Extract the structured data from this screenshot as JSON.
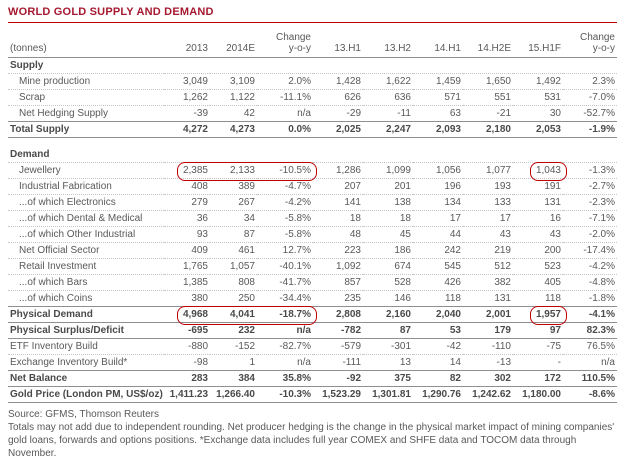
{
  "title": "WORLD GOLD SUPPLY AND DEMAND",
  "colors": {
    "title_red": "#A6192E",
    "rule_red": "#C00000",
    "highlight_red": "#C00000"
  },
  "table": {
    "unit_label": "(tonnes)",
    "columns": [
      {
        "label": "2013"
      },
      {
        "label": "2014E"
      },
      {
        "label": "Change",
        "sub": "y-o-y"
      },
      {
        "label": "13.H1"
      },
      {
        "label": "13.H2"
      },
      {
        "label": "14.H1"
      },
      {
        "label": "14.H2E"
      },
      {
        "label": "15.H1F"
      },
      {
        "label": "Change",
        "sub": "y-o-y"
      }
    ],
    "rows": [
      {
        "label": "Supply",
        "style": "section",
        "border": "dotted"
      },
      {
        "label": "Mine production",
        "indent": 1,
        "border": "dotted",
        "values": [
          "3,049",
          "3,109",
          "2.0%",
          "1,428",
          "1,622",
          "1,459",
          "1,650",
          "1,492",
          "2.3%"
        ]
      },
      {
        "label": "Scrap",
        "indent": 1,
        "border": "dotted",
        "values": [
          "1,262",
          "1,122",
          "-11.1%",
          "626",
          "636",
          "571",
          "551",
          "531",
          "-7.0%"
        ]
      },
      {
        "label": "Net Hedging Supply",
        "indent": 1,
        "border": "solid",
        "values": [
          "-39",
          "42",
          "n/a",
          "-29",
          "-11",
          "63",
          "-21",
          "30",
          "-52.7%"
        ]
      },
      {
        "label": "Total Supply",
        "style": "total",
        "border": "solid",
        "values": [
          "4,272",
          "4,273",
          "0.0%",
          "2,025",
          "2,247",
          "2,093",
          "2,180",
          "2,053",
          "-1.9%"
        ]
      },
      {
        "style": "spacer",
        "border": "none"
      },
      {
        "label": "Demand",
        "style": "section",
        "border": "dotted"
      },
      {
        "label": "Jewellery",
        "indent": 1,
        "border": "dotted",
        "values": [
          "2,385",
          "2,133",
          "-10.5%",
          "1,286",
          "1,099",
          "1,056",
          "1,077",
          "1,043",
          "-1.3%"
        ],
        "highlights": [
          {
            "from": 0,
            "to": 2
          },
          {
            "from": 7,
            "to": 7
          }
        ]
      },
      {
        "label": "Industrial Fabrication",
        "indent": 1,
        "border": "dotted",
        "values": [
          "408",
          "389",
          "-4.7%",
          "207",
          "201",
          "196",
          "193",
          "191",
          "-2.7%"
        ]
      },
      {
        "label": "...of which Electronics",
        "indent": 1,
        "border": "dotted",
        "values": [
          "279",
          "267",
          "-4.2%",
          "141",
          "138",
          "134",
          "133",
          "131",
          "-2.3%"
        ]
      },
      {
        "label": "...of which Dental & Medical",
        "indent": 1,
        "border": "dotted",
        "values": [
          "36",
          "34",
          "-5.8%",
          "18",
          "18",
          "17",
          "17",
          "16",
          "-7.1%"
        ]
      },
      {
        "label": "...of which Other Industrial",
        "indent": 1,
        "border": "dotted",
        "values": [
          "93",
          "87",
          "-5.8%",
          "48",
          "45",
          "44",
          "43",
          "43",
          "-2.0%"
        ]
      },
      {
        "label": "Net Official Sector",
        "indent": 1,
        "border": "dotted",
        "values": [
          "409",
          "461",
          "12.7%",
          "223",
          "186",
          "242",
          "219",
          "200",
          "-17.4%"
        ]
      },
      {
        "label": "Retail Investment",
        "indent": 1,
        "border": "dotted",
        "values": [
          "1,765",
          "1,057",
          "-40.1%",
          "1,092",
          "674",
          "545",
          "512",
          "523",
          "-4.2%"
        ]
      },
      {
        "label": "...of which Bars",
        "indent": 1,
        "border": "dotted",
        "values": [
          "1,385",
          "808",
          "-41.7%",
          "857",
          "528",
          "426",
          "382",
          "405",
          "-4.8%"
        ]
      },
      {
        "label": "...of which Coins",
        "indent": 1,
        "border": "solid",
        "values": [
          "380",
          "250",
          "-34.4%",
          "235",
          "146",
          "118",
          "131",
          "118",
          "-1.8%"
        ]
      },
      {
        "label": "Physical Demand",
        "style": "total",
        "border": "solid",
        "values": [
          "4,968",
          "4,041",
          "-18.7%",
          "2,808",
          "2,160",
          "2,040",
          "2,001",
          "1,957",
          "-4.1%"
        ],
        "highlights": [
          {
            "from": 0,
            "to": 2
          },
          {
            "from": 7,
            "to": 7
          }
        ]
      },
      {
        "label": "Physical Surplus/Deficit",
        "style": "total",
        "border": "solid",
        "values": [
          "-695",
          "232",
          "n/a",
          "-782",
          "87",
          "53",
          "179",
          "97",
          "82.3%"
        ]
      },
      {
        "label": "ETF Inventory Build",
        "border": "dotted",
        "values": [
          "-880",
          "-152",
          "-82.7%",
          "-579",
          "-301",
          "-42",
          "-110",
          "-75",
          "76.5%"
        ]
      },
      {
        "label": "Exchange Inventory Build*",
        "border": "solid",
        "values": [
          "-98",
          "1",
          "n/a",
          "-111",
          "13",
          "14",
          "-13",
          "-",
          "n/a"
        ]
      },
      {
        "label": "Net Balance",
        "style": "total",
        "border": "solid",
        "values": [
          "283",
          "384",
          "35.8%",
          "-92",
          "375",
          "82",
          "302",
          "172",
          "110.5%"
        ]
      },
      {
        "label": "Gold Price (London PM, US$/oz)",
        "style": "total",
        "border": "solid",
        "values": [
          "1,411.23",
          "1,266.40",
          "-10.3%",
          "1,523.29",
          "1,301.81",
          "1,290.76",
          "1,242.62",
          "1,180.00",
          "-8.6%"
        ]
      }
    ]
  },
  "footer": {
    "source": "Source: GFMS, Thomson Reuters",
    "notes": "Totals may not add due to independent rounding.  Net producer hedging is the change in the physical market impact of mining companies' gold loans, forwards and options positions.  *Exchange data includes full year COMEX and SHFE data and TOCOM data through November."
  }
}
